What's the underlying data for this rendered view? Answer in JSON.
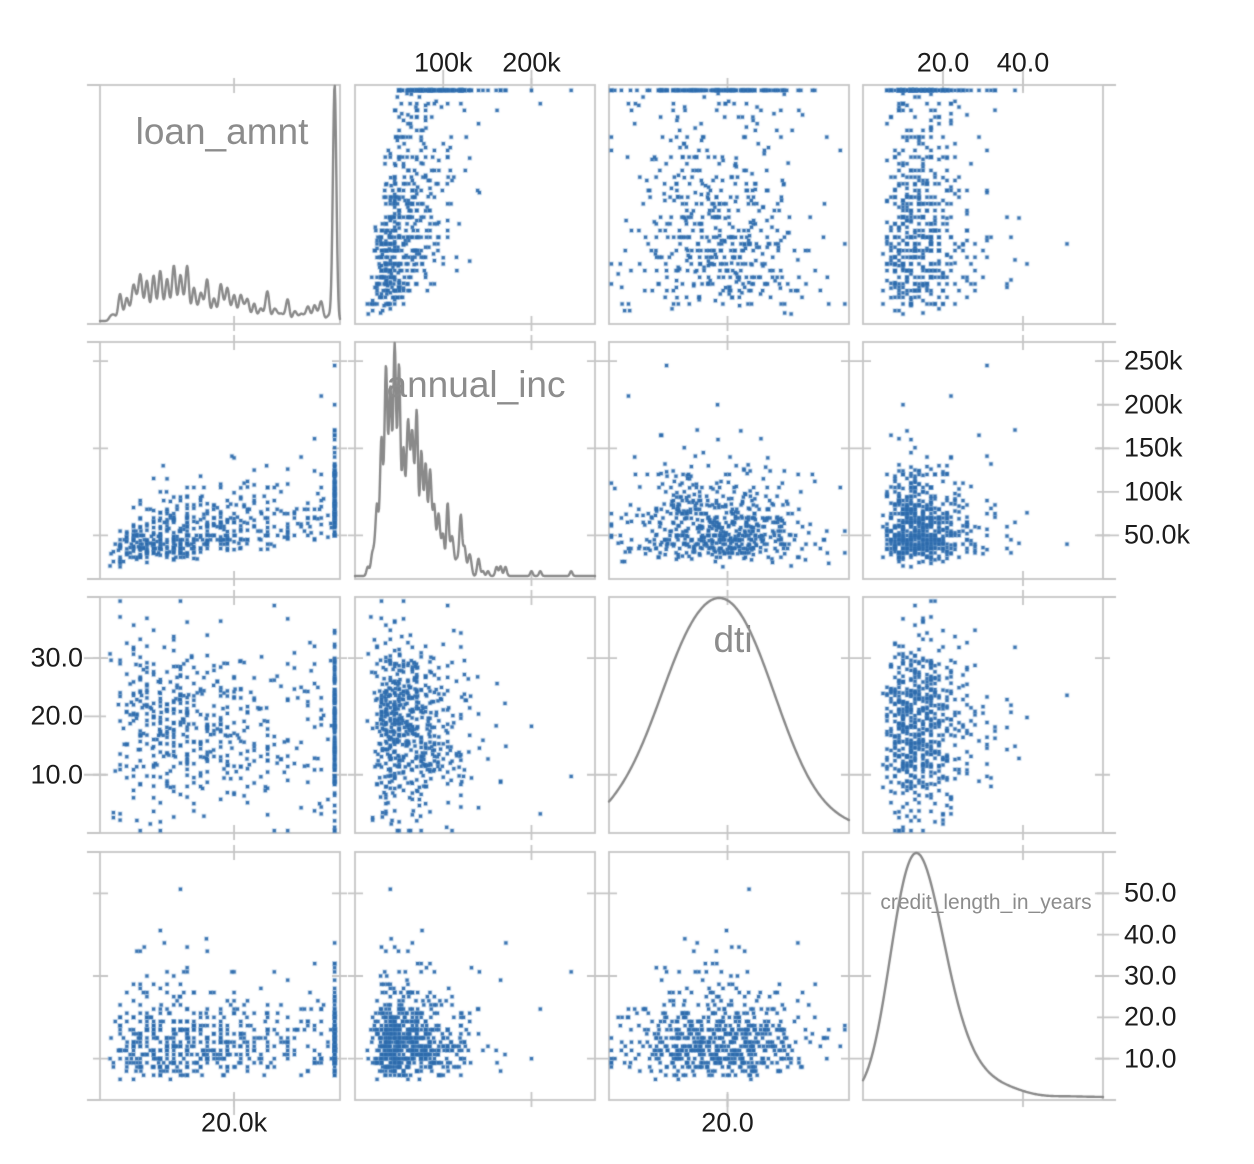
{
  "chart_data": {
    "type": "splom",
    "title": "",
    "description": "4x4 scatter plot matrix of loan records; diagonal cells show density curves, off-diagonal cells show pairwise scatter plots",
    "background": "#ffffff",
    "marker_color": "#2c6aac",
    "marker_halo_color": "#4682be",
    "curve_color": "#8a8a8a",
    "grid_color": "#c6c6c6",
    "diag_label_color": "#8c8c8c",
    "tick_label_color": "#1c1c1c",
    "n_points": 620,
    "seed": 1337,
    "legend": "none",
    "grid": "off",
    "variables": [
      {
        "name": "loan_amnt",
        "axis_range": [
          0,
          35800
        ],
        "col_axis": {
          "side": "bottom",
          "ticks": [
            {
              "value": 20000,
              "label": "20.0k"
            }
          ]
        },
        "row_axis": {
          "side": "none",
          "ticks": []
        },
        "inner_col_ticks": [
          20000
        ],
        "inner_row_ticks": [],
        "density": {
          "style": "jagged",
          "bandwidth": 260,
          "shape": "many narrow spikes at 1000-multiples, tall spike at 35000 cap near right edge"
        },
        "distribution": {
          "kind": "derived_from_income",
          "cap": 35000,
          "cap_fraction": 0.09,
          "income_ratio_min": 0.1,
          "income_ratio_max": 0.5,
          "noise_sigma": 0.3,
          "min": 600,
          "round_units": [
            1000,
            500,
            25
          ]
        }
      },
      {
        "name": "annual_inc",
        "axis_range": [
          0,
          272000
        ],
        "col_axis": {
          "side": "top",
          "ticks": [
            {
              "value": 100000,
              "label": "100k"
            },
            {
              "value": 200000,
              "label": "200k"
            }
          ]
        },
        "row_axis": {
          "side": "right",
          "ticks": [
            {
              "value": 250000,
              "label": "250k"
            },
            {
              "value": 200000,
              "label": "200k"
            },
            {
              "value": 150000,
              "label": "150k"
            },
            {
              "value": 100000,
              "label": "100k"
            },
            {
              "value": 50000,
              "label": "50.0k"
            }
          ]
        },
        "inner_col_ticks": [
          200000
        ],
        "inner_row_ticks": [
          250000,
          150000,
          50000
        ],
        "density": {
          "style": "jagged",
          "bandwidth": 1400,
          "shape": "dense spikes at 5k-multiples peaking near 55k with long right tail"
        },
        "distribution": {
          "kind": "lognormal",
          "mu": 10.95,
          "sigma": 0.45,
          "min": 8000,
          "max": 268000,
          "round_units": [
            5000,
            1000,
            100
          ]
        }
      },
      {
        "name": "dti",
        "axis_range": [
          0,
          40.5
        ],
        "col_axis": {
          "side": "bottom",
          "ticks": [
            {
              "value": 20,
              "label": "20.0"
            }
          ]
        },
        "row_axis": {
          "side": "left",
          "ticks": [
            {
              "value": 30,
              "label": "30.0"
            },
            {
              "value": 20,
              "label": "20.0"
            },
            {
              "value": 10,
              "label": "10.0"
            }
          ]
        },
        "inner_col_ticks": [
          20
        ],
        "inner_row_ticks": [
          30,
          10
        ],
        "density": {
          "style": "smooth",
          "bandwidth": 4.4,
          "shape": "wide smooth bell peaking near 18"
        },
        "distribution": {
          "kind": "normal",
          "mean": 18.4,
          "sd": 7.5,
          "min": 0.4,
          "max": 39.8,
          "income_coupling": -1.6
        }
      },
      {
        "name": "credit_length_in_years",
        "axis_range": [
          0,
          60
        ],
        "col_axis": {
          "side": "top",
          "ticks": [
            {
              "value": 20,
              "label": "20.0"
            },
            {
              "value": 40,
              "label": "40.0"
            }
          ]
        },
        "row_axis": {
          "side": "right",
          "ticks": [
            {
              "value": 50,
              "label": "50.0"
            },
            {
              "value": 40,
              "label": "40.0"
            },
            {
              "value": 30,
              "label": "30.0"
            },
            {
              "value": 20,
              "label": "20.0"
            },
            {
              "value": 10,
              "label": "10.0"
            }
          ]
        },
        "inner_col_ticks": [
          40
        ],
        "inner_row_ticks": [
          50,
          30,
          10
        ],
        "density": {
          "style": "smooth",
          "bandwidth": 4.2,
          "shape": "right-skewed smooth curve peaking near 12 years, flat tail to 60"
        },
        "distribution": {
          "kind": "lognormal_offset",
          "mu": 2.45,
          "sigma": 0.5,
          "offset": 2,
          "min": 2,
          "max": 57,
          "integer": true
        }
      }
    ]
  }
}
